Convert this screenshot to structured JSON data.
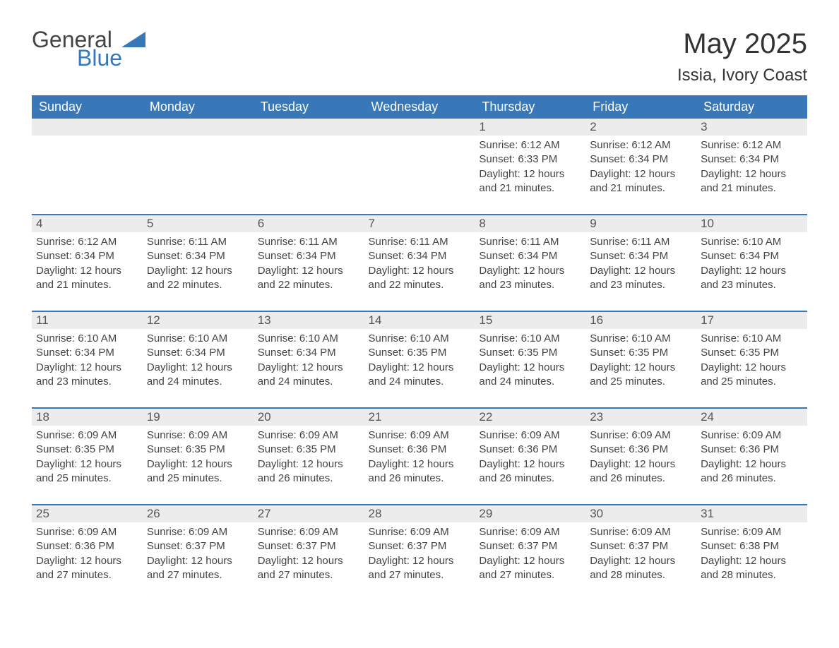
{
  "brand": {
    "text1": "General",
    "text2": "Blue",
    "accent_color": "#3878b8"
  },
  "header": {
    "month_title": "May 2025",
    "location": "Issia, Ivory Coast"
  },
  "colors": {
    "header_bg": "#3878b8",
    "header_text": "#ffffff",
    "daynum_bg": "#ececec",
    "daynum_text": "#555555",
    "body_text": "#444444",
    "border": "#3878b8",
    "page_bg": "#ffffff"
  },
  "typography": {
    "month_title_fontsize": 40,
    "location_fontsize": 24,
    "dayheader_fontsize": 18,
    "daynum_fontsize": 17,
    "body_fontsize": 15
  },
  "day_headers": [
    "Sunday",
    "Monday",
    "Tuesday",
    "Wednesday",
    "Thursday",
    "Friday",
    "Saturday"
  ],
  "weeks": [
    [
      null,
      null,
      null,
      null,
      {
        "n": "1",
        "sunrise": "Sunrise: 6:12 AM",
        "sunset": "Sunset: 6:33 PM",
        "daylight": "Daylight: 12 hours and 21 minutes."
      },
      {
        "n": "2",
        "sunrise": "Sunrise: 6:12 AM",
        "sunset": "Sunset: 6:34 PM",
        "daylight": "Daylight: 12 hours and 21 minutes."
      },
      {
        "n": "3",
        "sunrise": "Sunrise: 6:12 AM",
        "sunset": "Sunset: 6:34 PM",
        "daylight": "Daylight: 12 hours and 21 minutes."
      }
    ],
    [
      {
        "n": "4",
        "sunrise": "Sunrise: 6:12 AM",
        "sunset": "Sunset: 6:34 PM",
        "daylight": "Daylight: 12 hours and 21 minutes."
      },
      {
        "n": "5",
        "sunrise": "Sunrise: 6:11 AM",
        "sunset": "Sunset: 6:34 PM",
        "daylight": "Daylight: 12 hours and 22 minutes."
      },
      {
        "n": "6",
        "sunrise": "Sunrise: 6:11 AM",
        "sunset": "Sunset: 6:34 PM",
        "daylight": "Daylight: 12 hours and 22 minutes."
      },
      {
        "n": "7",
        "sunrise": "Sunrise: 6:11 AM",
        "sunset": "Sunset: 6:34 PM",
        "daylight": "Daylight: 12 hours and 22 minutes."
      },
      {
        "n": "8",
        "sunrise": "Sunrise: 6:11 AM",
        "sunset": "Sunset: 6:34 PM",
        "daylight": "Daylight: 12 hours and 23 minutes."
      },
      {
        "n": "9",
        "sunrise": "Sunrise: 6:11 AM",
        "sunset": "Sunset: 6:34 PM",
        "daylight": "Daylight: 12 hours and 23 minutes."
      },
      {
        "n": "10",
        "sunrise": "Sunrise: 6:10 AM",
        "sunset": "Sunset: 6:34 PM",
        "daylight": "Daylight: 12 hours and 23 minutes."
      }
    ],
    [
      {
        "n": "11",
        "sunrise": "Sunrise: 6:10 AM",
        "sunset": "Sunset: 6:34 PM",
        "daylight": "Daylight: 12 hours and 23 minutes."
      },
      {
        "n": "12",
        "sunrise": "Sunrise: 6:10 AM",
        "sunset": "Sunset: 6:34 PM",
        "daylight": "Daylight: 12 hours and 24 minutes."
      },
      {
        "n": "13",
        "sunrise": "Sunrise: 6:10 AM",
        "sunset": "Sunset: 6:34 PM",
        "daylight": "Daylight: 12 hours and 24 minutes."
      },
      {
        "n": "14",
        "sunrise": "Sunrise: 6:10 AM",
        "sunset": "Sunset: 6:35 PM",
        "daylight": "Daylight: 12 hours and 24 minutes."
      },
      {
        "n": "15",
        "sunrise": "Sunrise: 6:10 AM",
        "sunset": "Sunset: 6:35 PM",
        "daylight": "Daylight: 12 hours and 24 minutes."
      },
      {
        "n": "16",
        "sunrise": "Sunrise: 6:10 AM",
        "sunset": "Sunset: 6:35 PM",
        "daylight": "Daylight: 12 hours and 25 minutes."
      },
      {
        "n": "17",
        "sunrise": "Sunrise: 6:10 AM",
        "sunset": "Sunset: 6:35 PM",
        "daylight": "Daylight: 12 hours and 25 minutes."
      }
    ],
    [
      {
        "n": "18",
        "sunrise": "Sunrise: 6:09 AM",
        "sunset": "Sunset: 6:35 PM",
        "daylight": "Daylight: 12 hours and 25 minutes."
      },
      {
        "n": "19",
        "sunrise": "Sunrise: 6:09 AM",
        "sunset": "Sunset: 6:35 PM",
        "daylight": "Daylight: 12 hours and 25 minutes."
      },
      {
        "n": "20",
        "sunrise": "Sunrise: 6:09 AM",
        "sunset": "Sunset: 6:35 PM",
        "daylight": "Daylight: 12 hours and 26 minutes."
      },
      {
        "n": "21",
        "sunrise": "Sunrise: 6:09 AM",
        "sunset": "Sunset: 6:36 PM",
        "daylight": "Daylight: 12 hours and 26 minutes."
      },
      {
        "n": "22",
        "sunrise": "Sunrise: 6:09 AM",
        "sunset": "Sunset: 6:36 PM",
        "daylight": "Daylight: 12 hours and 26 minutes."
      },
      {
        "n": "23",
        "sunrise": "Sunrise: 6:09 AM",
        "sunset": "Sunset: 6:36 PM",
        "daylight": "Daylight: 12 hours and 26 minutes."
      },
      {
        "n": "24",
        "sunrise": "Sunrise: 6:09 AM",
        "sunset": "Sunset: 6:36 PM",
        "daylight": "Daylight: 12 hours and 26 minutes."
      }
    ],
    [
      {
        "n": "25",
        "sunrise": "Sunrise: 6:09 AM",
        "sunset": "Sunset: 6:36 PM",
        "daylight": "Daylight: 12 hours and 27 minutes."
      },
      {
        "n": "26",
        "sunrise": "Sunrise: 6:09 AM",
        "sunset": "Sunset: 6:37 PM",
        "daylight": "Daylight: 12 hours and 27 minutes."
      },
      {
        "n": "27",
        "sunrise": "Sunrise: 6:09 AM",
        "sunset": "Sunset: 6:37 PM",
        "daylight": "Daylight: 12 hours and 27 minutes."
      },
      {
        "n": "28",
        "sunrise": "Sunrise: 6:09 AM",
        "sunset": "Sunset: 6:37 PM",
        "daylight": "Daylight: 12 hours and 27 minutes."
      },
      {
        "n": "29",
        "sunrise": "Sunrise: 6:09 AM",
        "sunset": "Sunset: 6:37 PM",
        "daylight": "Daylight: 12 hours and 27 minutes."
      },
      {
        "n": "30",
        "sunrise": "Sunrise: 6:09 AM",
        "sunset": "Sunset: 6:37 PM",
        "daylight": "Daylight: 12 hours and 28 minutes."
      },
      {
        "n": "31",
        "sunrise": "Sunrise: 6:09 AM",
        "sunset": "Sunset: 6:38 PM",
        "daylight": "Daylight: 12 hours and 28 minutes."
      }
    ]
  ]
}
